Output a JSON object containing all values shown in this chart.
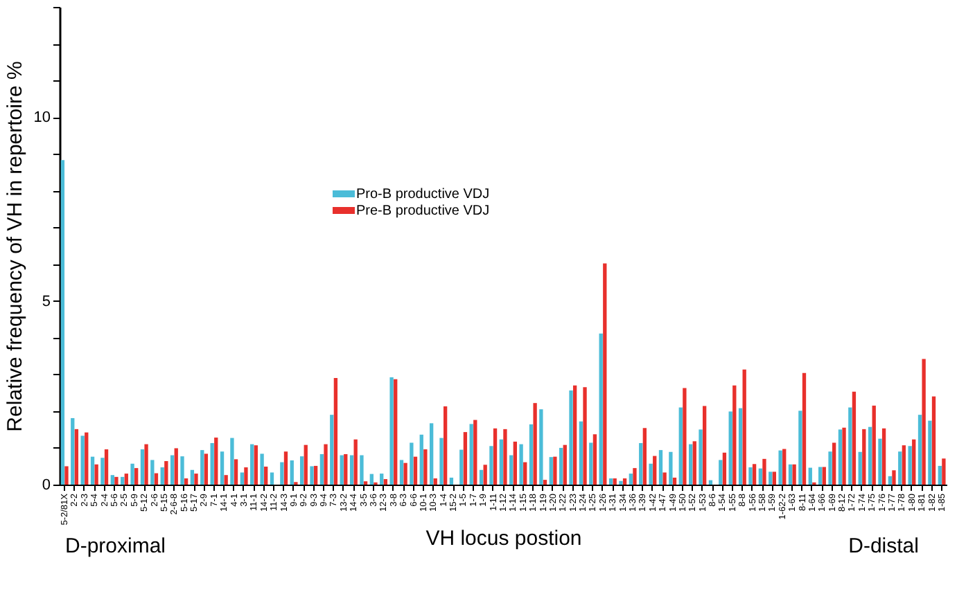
{
  "chart_data": {
    "type": "bar",
    "ylabel": "Relative frequency of VH in repertoire %",
    "xlabel": "VH locus postion",
    "annotations": [
      "D-proximal",
      "D-distal"
    ],
    "categories": [
      "5-2/81X",
      "2-2",
      "2-3",
      "5-4",
      "2-4",
      "5-6",
      "2-5",
      "5-9",
      "5-12",
      "2-6",
      "5-15",
      "2-6-8",
      "5-16",
      "5-17",
      "2-9",
      "7-1",
      "14-1",
      "4-1",
      "3-1",
      "11-1",
      "14-2",
      "11-2",
      "14-3",
      "9-1",
      "9-2",
      "9-3",
      "9-4",
      "7-3",
      "13-2",
      "14-4",
      "3-5",
      "3-6",
      "12-3",
      "3-8",
      "6-3",
      "6-6",
      "10-1",
      "10-3",
      "1-4",
      "15-2",
      "1-5",
      "1-7",
      "1-9",
      "1-11",
      "1-12",
      "1-14",
      "1-15",
      "1-18",
      "1-19",
      "1-20",
      "1-22",
      "1-23",
      "1-24",
      "1-25",
      "1-26",
      "1-31",
      "1-34",
      "1-36",
      "1-39",
      "1-42",
      "1-47",
      "1-49",
      "1-50",
      "1-52",
      "1-53",
      "8-6",
      "1-54",
      "1-55",
      "8-8",
      "1-56",
      "1-58",
      "1-59",
      "1-62-2",
      "1-63",
      "8-11",
      "1-64",
      "1-66",
      "1-69",
      "8-12",
      "1-72",
      "1-74",
      "1-75",
      "1-76",
      "1-77",
      "1-78",
      "1-80",
      "1-81",
      "1-82",
      "1-85"
    ],
    "series": [
      {
        "name": "Pro-B productive VDJ",
        "color": "#4bbcd8",
        "values": [
          8.83,
          1.81,
          1.33,
          0.76,
          0.73,
          0.26,
          0.21,
          0.57,
          0.96,
          0.67,
          0.47,
          0.8,
          0.77,
          0.4,
          0.94,
          1.13,
          0.9,
          1.27,
          0.33,
          1.1,
          0.84,
          0.33,
          0.61,
          0.66,
          0.77,
          0.5,
          0.83,
          1.9,
          0.8,
          0.8,
          0.8,
          0.29,
          0.3,
          2.92,
          0.67,
          1.14,
          1.36,
          1.67,
          1.27,
          0.19,
          0.95,
          1.65,
          0.4,
          1.05,
          1.23,
          0.8,
          1.1,
          1.64,
          2.05,
          0.75,
          1.0,
          2.56,
          1.72,
          1.14,
          4.11,
          0.17,
          0.1,
          0.3,
          1.13,
          0.57,
          0.94,
          0.89,
          2.1,
          1.1,
          1.5,
          0.12,
          0.67,
          1.99,
          2.08,
          0.47,
          0.44,
          0.35,
          0.93,
          0.55,
          2.01,
          0.46,
          0.48,
          0.9,
          1.5,
          2.1,
          0.89,
          1.57,
          1.25,
          0.23,
          0.9,
          1.05,
          1.9,
          1.74,
          0.51
        ]
      },
      {
        "name": "Pre-B productive VDJ",
        "color": "#e8302c",
        "values": [
          0.5,
          1.51,
          1.42,
          0.55,
          0.96,
          0.21,
          0.3,
          0.45,
          1.1,
          0.31,
          0.64,
          0.99,
          0.17,
          0.3,
          0.84,
          1.28,
          0.26,
          0.69,
          0.47,
          1.07,
          0.49,
          0,
          0.9,
          0.07,
          1.08,
          0.51,
          1.1,
          2.9,
          0.83,
          1.23,
          0.09,
          0.06,
          0.15,
          2.87,
          0.59,
          0.76,
          0.96,
          0.17,
          2.13,
          0,
          1.43,
          1.76,
          0.54,
          1.53,
          1.51,
          1.17,
          0.61,
          2.22,
          0.13,
          0.76,
          1.08,
          2.7,
          2.65,
          1.37,
          6.02,
          0.17,
          0.17,
          0.45,
          1.54,
          0.78,
          0.33,
          0.19,
          2.63,
          1.18,
          2.14,
          0,
          0.87,
          2.7,
          3.13,
          0.56,
          0.7,
          0.35,
          0.97,
          0.55,
          3.04,
          0.06,
          0.48,
          1.14,
          1.55,
          2.53,
          1.51,
          2.15,
          1.53,
          0.39,
          1.07,
          1.23,
          3.42,
          2.4,
          0.71
        ]
      }
    ],
    "ylim": [
      0,
      13
    ],
    "yticks": [
      0,
      {
        "value": 1,
        "label": null
      },
      {
        "value": 2,
        "label": null
      },
      {
        "value": 3,
        "label": null
      },
      {
        "value": 4,
        "label": null
      },
      5,
      {
        "value": 6,
        "label": null
      },
      {
        "value": 7,
        "label": null
      },
      {
        "value": 8,
        "label": null
      },
      {
        "value": 9,
        "label": null
      },
      10,
      {
        "value": 11,
        "label": null
      },
      {
        "value": 12,
        "label": null
      },
      {
        "value": 13,
        "label": null
      }
    ],
    "legend": "top left",
    "grid": false
  }
}
